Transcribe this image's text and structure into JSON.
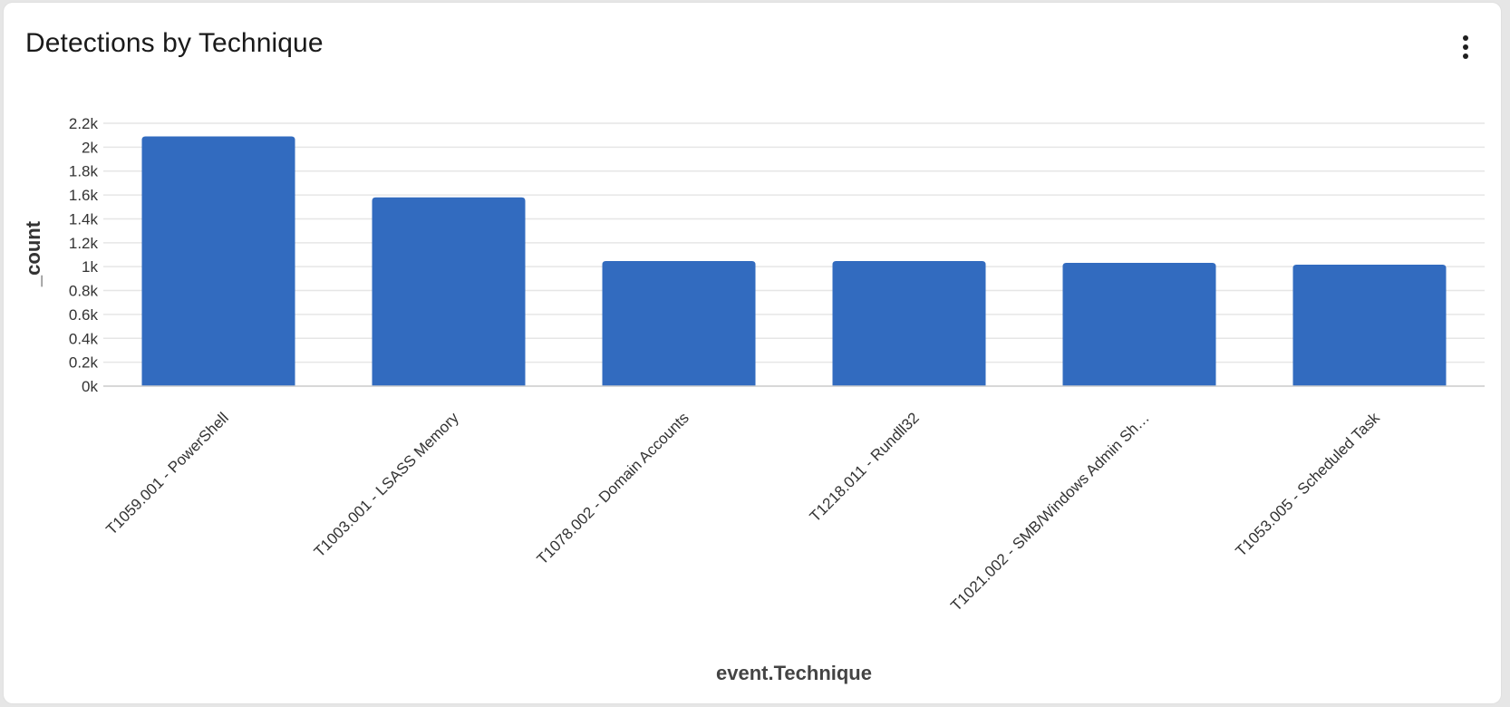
{
  "header": {
    "title": "Detections by Technique",
    "menu_icon": "kebab-vertical-icon"
  },
  "colors": {
    "bar": "#326bbf",
    "grid": "#e6e6e6",
    "axis": "#cccccc",
    "text": "#333333"
  },
  "chart_data": {
    "type": "bar",
    "title": "Detections by Technique",
    "xlabel": "event.Technique",
    "ylabel": "_count",
    "ylim": [
      0,
      2200
    ],
    "grid": true,
    "legend": null,
    "yticks": [
      "0k",
      "0.2k",
      "0.4k",
      "0.6k",
      "0.8k",
      "1k",
      "1.2k",
      "1.4k",
      "1.6k",
      "1.8k",
      "2k",
      "2.2k"
    ],
    "categories": [
      "T1059.001 - PowerShell",
      "T1003.001 - LSASS Memory",
      "T1078.002 - Domain Accounts",
      "T1218.011 - Rundll32",
      "T1021.002 - SMB/Windows Admin Sh…",
      "T1053.005 - Scheduled Task"
    ],
    "values": [
      2090,
      1580,
      1047,
      1047,
      1032,
      1017
    ]
  }
}
